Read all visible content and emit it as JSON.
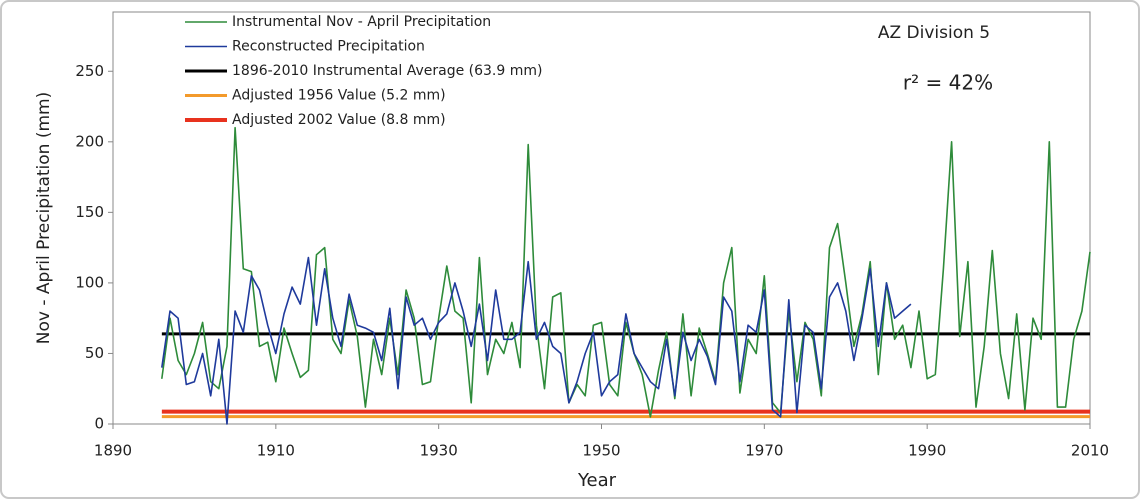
{
  "chart_data": {
    "type": "line",
    "xlabel": "Year",
    "ylabel": "Nov - April Precipitation (mm)",
    "annotations": [
      "AZ Division 5",
      "r² = 42%"
    ],
    "xlim": [
      1890,
      2010
    ],
    "xticks": [
      1890,
      1910,
      1930,
      1950,
      1970,
      1990,
      2010
    ],
    "ylim": [
      0,
      292
    ],
    "yticks": [
      0,
      50,
      100,
      150,
      200,
      250
    ],
    "legend": "upper left",
    "series": [
      {
        "name": "Instrumental Nov - April Precipitation",
        "color": "#2e8b3a",
        "x": [
          1896,
          1897,
          1898,
          1899,
          1900,
          1901,
          1902,
          1903,
          1904,
          1905,
          1906,
          1907,
          1908,
          1909,
          1910,
          1911,
          1912,
          1913,
          1914,
          1915,
          1916,
          1917,
          1918,
          1919,
          1920,
          1921,
          1922,
          1923,
          1924,
          1925,
          1926,
          1927,
          1928,
          1929,
          1930,
          1931,
          1932,
          1933,
          1934,
          1935,
          1936,
          1937,
          1938,
          1939,
          1940,
          1941,
          1942,
          1943,
          1944,
          1945,
          1946,
          1947,
          1948,
          1949,
          1950,
          1951,
          1952,
          1953,
          1954,
          1955,
          1956,
          1957,
          1958,
          1959,
          1960,
          1961,
          1962,
          1963,
          1964,
          1965,
          1966,
          1967,
          1968,
          1969,
          1970,
          1971,
          1972,
          1973,
          1974,
          1975,
          1976,
          1977,
          1978,
          1979,
          1980,
          1981,
          1982,
          1983,
          1984,
          1985,
          1986,
          1987,
          1988,
          1989,
          1990,
          1991,
          1992,
          1993,
          1994,
          1995,
          1996,
          1997,
          1998,
          1999,
          2000,
          2001,
          2002,
          2003,
          2004,
          2005,
          2006,
          2007,
          2008,
          2009,
          2010
        ],
        "values": [
          32,
          75,
          45,
          35,
          50,
          72,
          30,
          25,
          55,
          210,
          110,
          108,
          55,
          58,
          30,
          68,
          50,
          33,
          38,
          120,
          125,
          60,
          50,
          88,
          62,
          12,
          60,
          35,
          75,
          35,
          95,
          75,
          28,
          30,
          75,
          112,
          80,
          75,
          15,
          118,
          35,
          60,
          50,
          72,
          40,
          198,
          70,
          25,
          90,
          93,
          15,
          28,
          20,
          70,
          72,
          28,
          20,
          72,
          50,
          35,
          5,
          38,
          65,
          18,
          78,
          20,
          68,
          50,
          30,
          100,
          125,
          22,
          60,
          50,
          105,
          15,
          8,
          80,
          30,
          72,
          60,
          20,
          125,
          142,
          100,
          55,
          78,
          115,
          35,
          100,
          60,
          70,
          40,
          80,
          32,
          35,
          110,
          200,
          62,
          115,
          12,
          55,
          123,
          50,
          18,
          78,
          10,
          75,
          60,
          200,
          12,
          12,
          60,
          80,
          122
        ]
      },
      {
        "name": "Reconstructed Precipitation",
        "color": "#1f3a9c",
        "x": [
          1896,
          1897,
          1898,
          1899,
          1900,
          1901,
          1902,
          1903,
          1904,
          1905,
          1906,
          1907,
          1908,
          1909,
          1910,
          1911,
          1912,
          1913,
          1914,
          1915,
          1916,
          1917,
          1918,
          1919,
          1920,
          1921,
          1922,
          1923,
          1924,
          1925,
          1926,
          1927,
          1928,
          1929,
          1930,
          1931,
          1932,
          1933,
          1934,
          1935,
          1936,
          1937,
          1938,
          1939,
          1940,
          1941,
          1942,
          1943,
          1944,
          1945,
          1946,
          1947,
          1948,
          1949,
          1950,
          1951,
          1952,
          1953,
          1954,
          1955,
          1956,
          1957,
          1958,
          1959,
          1960,
          1961,
          1962,
          1963,
          1964,
          1965,
          1966,
          1967,
          1968,
          1969,
          1970,
          1971,
          1972,
          1973,
          1974,
          1975,
          1976,
          1977,
          1978,
          1979,
          1980,
          1981,
          1982,
          1983,
          1984,
          1985,
          1986,
          1987,
          1988
        ],
        "values": [
          40,
          80,
          75,
          28,
          30,
          50,
          20,
          60,
          0,
          80,
          65,
          105,
          95,
          70,
          50,
          78,
          97,
          85,
          118,
          70,
          110,
          75,
          55,
          92,
          70,
          68,
          65,
          45,
          82,
          25,
          90,
          70,
          75,
          60,
          72,
          78,
          100,
          80,
          55,
          85,
          45,
          95,
          60,
          60,
          65,
          115,
          60,
          72,
          55,
          50,
          15,
          30,
          50,
          65,
          20,
          30,
          35,
          78,
          50,
          40,
          30,
          25,
          60,
          20,
          65,
          45,
          60,
          48,
          28,
          90,
          80,
          30,
          70,
          65,
          95,
          10,
          5,
          88,
          8,
          70,
          65,
          25,
          90,
          100,
          80,
          45,
          75,
          110,
          55,
          100,
          75,
          80,
          85
        ]
      }
    ],
    "hlines": [
      {
        "name": "1896-2010 Instrumental Average (63.9 mm)",
        "color": "#000000",
        "value": 63.9
      },
      {
        "name": "Adjusted 1956 Value (5.2 mm)",
        "color": "#f39a2b",
        "value": 5.2
      },
      {
        "name": "Adjusted 2002 Value (8.8 mm)",
        "color": "#e8321e",
        "value": 8.8
      }
    ]
  }
}
